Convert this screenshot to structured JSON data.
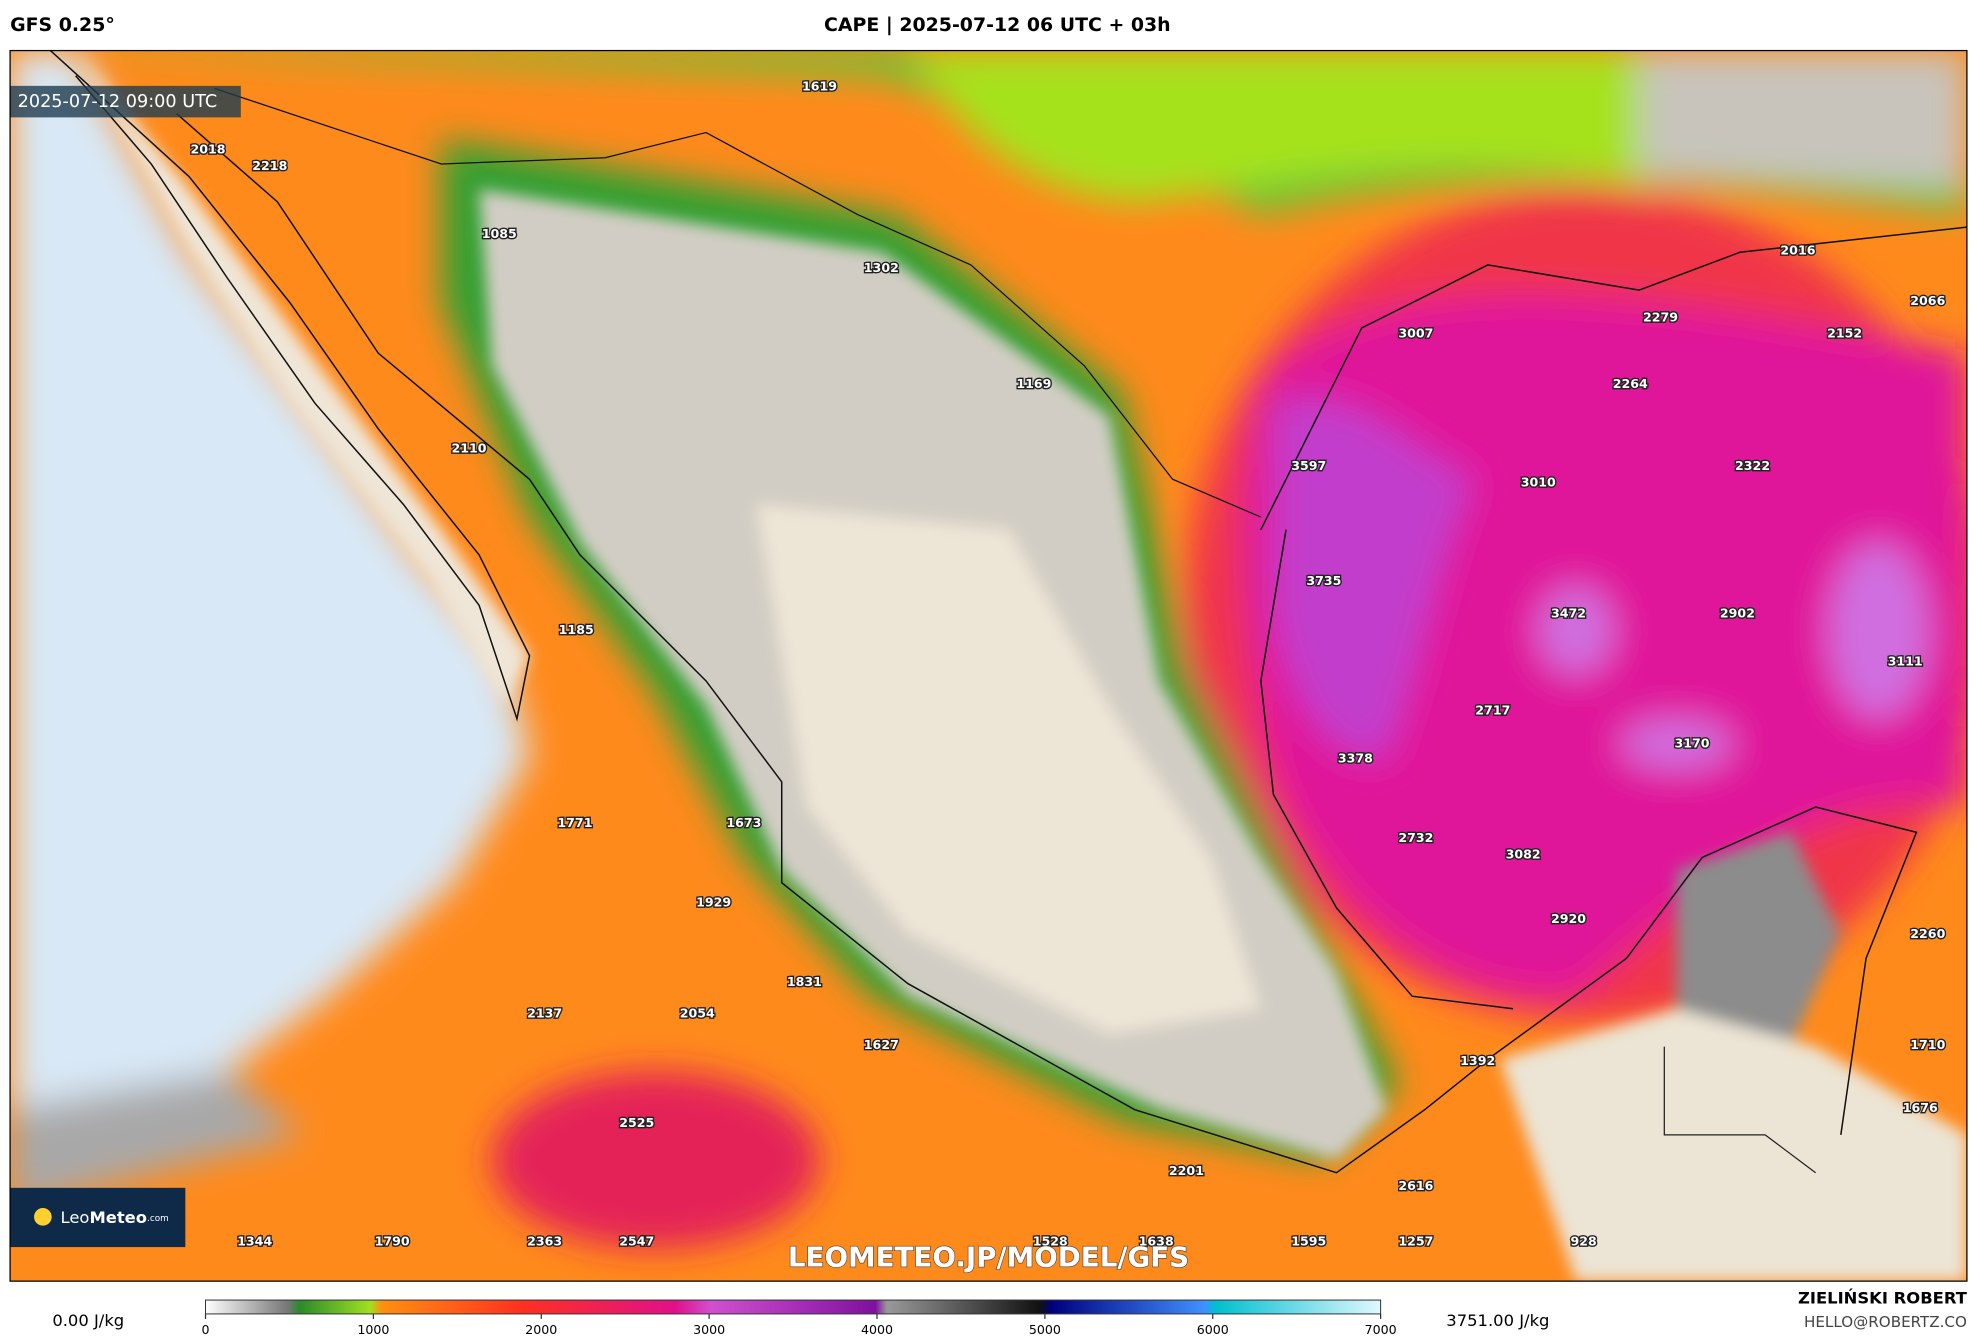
{
  "header": {
    "model": "GFS 0.25°",
    "title": "CAPE | 2025-07-12 06 UTC + 03h"
  },
  "map": {
    "valid_time": "2025-07-12 09:00 UTC",
    "watermark": "LEOMETEO.JP/MODEL/GFS",
    "logo": {
      "brand_light": "Leo",
      "brand_bold": "Meteo",
      "suffix": ".com"
    },
    "point_values": [
      1619,
      2018,
      2218,
      1085,
      1302,
      3007,
      2279,
      2016,
      2066,
      2152,
      2264,
      1169,
      2110,
      3597,
      3010,
      2322,
      3735,
      3472,
      2902,
      1185,
      3111,
      2717,
      3170,
      3378,
      1771,
      1673,
      2732,
      3082,
      1929,
      2920,
      2260,
      1831,
      2137,
      2054,
      1627,
      1710,
      1392,
      1676,
      2525,
      2201,
      2616,
      1344,
      1790,
      2363,
      2547,
      1528,
      1638,
      1595,
      1257,
      928
    ]
  },
  "colorbar": {
    "min_label": "0.00 J/kg",
    "max_label": "3751.00 J/kg",
    "lim": [
      0,
      7000
    ],
    "ticks": [
      0,
      1000,
      2000,
      3000,
      4000,
      5000,
      6000,
      7000
    ]
  },
  "footer": {
    "author": "ZIELIŃSKI ROBERT",
    "contact": "HELLO@ROBERTZ.CO"
  }
}
